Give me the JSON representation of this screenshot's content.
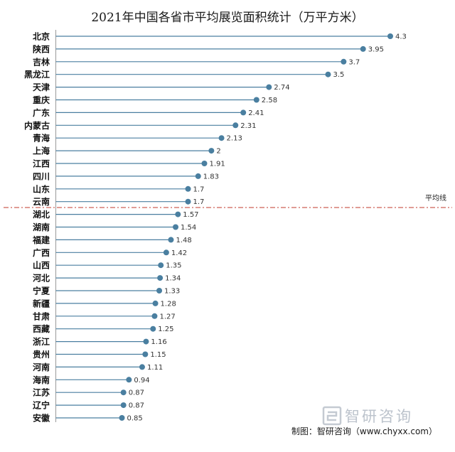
{
  "chart_data": {
    "type": "lollipop",
    "title": "2021年中国各省市平均展览面积统计（万平方米）",
    "categories": [
      "北京",
      "陕西",
      "吉林",
      "黑龙江",
      "天津",
      "重庆",
      "广东",
      "内蒙古",
      "青海",
      "上海",
      "江西",
      "四川",
      "山东",
      "云南",
      "湖北",
      "湖南",
      "福建",
      "广西",
      "山西",
      "河北",
      "宁夏",
      "新疆",
      "甘肃",
      "西藏",
      "浙江",
      "贵州",
      "河南",
      "海南",
      "江苏",
      "辽宁",
      "安徽"
    ],
    "values": [
      4.3,
      3.95,
      3.7,
      3.5,
      2.74,
      2.58,
      2.41,
      2.31,
      2.13,
      2,
      1.91,
      1.83,
      1.7,
      1.7,
      1.57,
      1.54,
      1.48,
      1.42,
      1.35,
      1.34,
      1.33,
      1.28,
      1.27,
      1.25,
      1.16,
      1.15,
      1.11,
      0.94,
      0.87,
      0.87,
      0.85
    ],
    "value_labels": [
      "4.3",
      "3.95",
      "3.7",
      "3.5",
      "2.74",
      "2.58",
      "2.41",
      "2.31",
      "2.13",
      "2",
      "1.91",
      "1.83",
      "1.7",
      "1.7",
      "1.57",
      "1.54",
      "1.48",
      "1.42",
      "1.35",
      "1.34",
      "1.33",
      "1.28",
      "1.27",
      "1.25",
      "1.16",
      "1.15",
      "1.11",
      "0.94",
      "0.87",
      "0.87",
      "0.85"
    ],
    "xlim": [
      0,
      4.3
    ],
    "average_line_label": "平均线",
    "colors": {
      "marker": "#4a7fa0",
      "stem": "#4a7fa0",
      "average_line": "#c0392b",
      "axis": "#999999"
    }
  },
  "watermark": {
    "text": "智研咨询"
  },
  "source": "制图：智研咨询（www.chyxx.com）"
}
